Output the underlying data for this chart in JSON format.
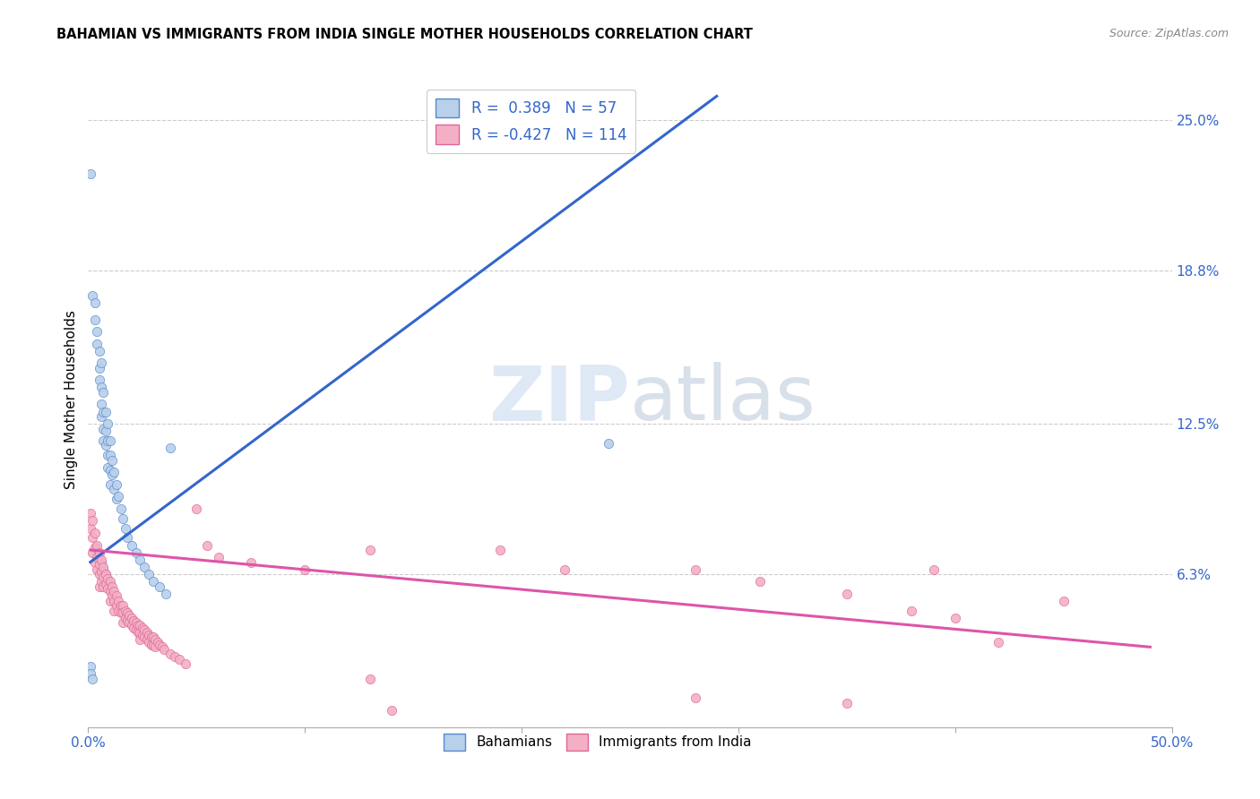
{
  "title": "BAHAMIAN VS IMMIGRANTS FROM INDIA SINGLE MOTHER HOUSEHOLDS CORRELATION CHART",
  "source": "Source: ZipAtlas.com",
  "ylabel": "Single Mother Households",
  "xlim": [
    0.0,
    0.5
  ],
  "ylim": [
    0.0,
    0.27
  ],
  "yticks": [
    0.063,
    0.125,
    0.188,
    0.25
  ],
  "ytick_labels": [
    "6.3%",
    "12.5%",
    "18.8%",
    "25.0%"
  ],
  "xticks": [
    0.0,
    0.1,
    0.2,
    0.3,
    0.4,
    0.5
  ],
  "xtick_labels": [
    "0.0%",
    "",
    "",
    "",
    "",
    "50.0%"
  ],
  "r_blue": 0.389,
  "n_blue": 57,
  "r_pink": -0.427,
  "n_pink": 114,
  "blue_color": "#b8d0ea",
  "pink_color": "#f4afc4",
  "blue_edge_color": "#5588cc",
  "pink_edge_color": "#dd6699",
  "blue_line_color": "#3366cc",
  "pink_line_color": "#dd55aa",
  "watermark_zip": "ZIP",
  "watermark_atlas": "atlas",
  "background_color": "#ffffff",
  "blue_scatter": [
    [
      0.001,
      0.228
    ],
    [
      0.002,
      0.178
    ],
    [
      0.003,
      0.175
    ],
    [
      0.003,
      0.168
    ],
    [
      0.004,
      0.163
    ],
    [
      0.004,
      0.158
    ],
    [
      0.005,
      0.155
    ],
    [
      0.005,
      0.148
    ],
    [
      0.005,
      0.143
    ],
    [
      0.006,
      0.15
    ],
    [
      0.006,
      0.14
    ],
    [
      0.006,
      0.133
    ],
    [
      0.006,
      0.128
    ],
    [
      0.007,
      0.138
    ],
    [
      0.007,
      0.13
    ],
    [
      0.007,
      0.123
    ],
    [
      0.007,
      0.118
    ],
    [
      0.008,
      0.13
    ],
    [
      0.008,
      0.122
    ],
    [
      0.008,
      0.116
    ],
    [
      0.009,
      0.125
    ],
    [
      0.009,
      0.118
    ],
    [
      0.009,
      0.112
    ],
    [
      0.009,
      0.107
    ],
    [
      0.01,
      0.118
    ],
    [
      0.01,
      0.112
    ],
    [
      0.01,
      0.106
    ],
    [
      0.01,
      0.1
    ],
    [
      0.011,
      0.11
    ],
    [
      0.011,
      0.104
    ],
    [
      0.012,
      0.105
    ],
    [
      0.012,
      0.098
    ],
    [
      0.013,
      0.1
    ],
    [
      0.013,
      0.094
    ],
    [
      0.014,
      0.095
    ],
    [
      0.015,
      0.09
    ],
    [
      0.016,
      0.086
    ],
    [
      0.017,
      0.082
    ],
    [
      0.018,
      0.078
    ],
    [
      0.02,
      0.075
    ],
    [
      0.022,
      0.072
    ],
    [
      0.024,
      0.069
    ],
    [
      0.026,
      0.066
    ],
    [
      0.028,
      0.063
    ],
    [
      0.03,
      0.06
    ],
    [
      0.033,
      0.058
    ],
    [
      0.036,
      0.055
    ],
    [
      0.038,
      0.115
    ],
    [
      0.001,
      0.025
    ],
    [
      0.001,
      0.022
    ],
    [
      0.002,
      0.02
    ],
    [
      0.006,
      0.068
    ],
    [
      0.007,
      0.065
    ],
    [
      0.008,
      0.063
    ],
    [
      0.009,
      0.06
    ],
    [
      0.24,
      0.117
    ]
  ],
  "pink_scatter": [
    [
      0.001,
      0.088
    ],
    [
      0.001,
      0.082
    ],
    [
      0.002,
      0.085
    ],
    [
      0.002,
      0.078
    ],
    [
      0.002,
      0.072
    ],
    [
      0.003,
      0.08
    ],
    [
      0.003,
      0.074
    ],
    [
      0.003,
      0.068
    ],
    [
      0.004,
      0.075
    ],
    [
      0.004,
      0.07
    ],
    [
      0.004,
      0.065
    ],
    [
      0.005,
      0.072
    ],
    [
      0.005,
      0.067
    ],
    [
      0.005,
      0.063
    ],
    [
      0.005,
      0.058
    ],
    [
      0.006,
      0.069
    ],
    [
      0.006,
      0.064
    ],
    [
      0.006,
      0.06
    ],
    [
      0.007,
      0.066
    ],
    [
      0.007,
      0.062
    ],
    [
      0.007,
      0.058
    ],
    [
      0.008,
      0.063
    ],
    [
      0.008,
      0.059
    ],
    [
      0.009,
      0.061
    ],
    [
      0.009,
      0.057
    ],
    [
      0.01,
      0.06
    ],
    [
      0.01,
      0.056
    ],
    [
      0.01,
      0.052
    ],
    [
      0.011,
      0.058
    ],
    [
      0.011,
      0.054
    ],
    [
      0.012,
      0.056
    ],
    [
      0.012,
      0.052
    ],
    [
      0.012,
      0.048
    ],
    [
      0.013,
      0.054
    ],
    [
      0.013,
      0.05
    ],
    [
      0.014,
      0.052
    ],
    [
      0.014,
      0.048
    ],
    [
      0.015,
      0.05
    ],
    [
      0.015,
      0.047
    ],
    [
      0.016,
      0.05
    ],
    [
      0.016,
      0.047
    ],
    [
      0.016,
      0.043
    ],
    [
      0.017,
      0.048
    ],
    [
      0.017,
      0.045
    ],
    [
      0.018,
      0.047
    ],
    [
      0.018,
      0.044
    ],
    [
      0.019,
      0.046
    ],
    [
      0.019,
      0.043
    ],
    [
      0.02,
      0.045
    ],
    [
      0.02,
      0.042
    ],
    [
      0.021,
      0.044
    ],
    [
      0.021,
      0.041
    ],
    [
      0.022,
      0.043
    ],
    [
      0.022,
      0.04
    ],
    [
      0.023,
      0.042
    ],
    [
      0.023,
      0.039
    ],
    [
      0.024,
      0.042
    ],
    [
      0.024,
      0.039
    ],
    [
      0.024,
      0.036
    ],
    [
      0.025,
      0.041
    ],
    [
      0.025,
      0.038
    ],
    [
      0.026,
      0.04
    ],
    [
      0.026,
      0.037
    ],
    [
      0.027,
      0.039
    ],
    [
      0.027,
      0.036
    ],
    [
      0.028,
      0.038
    ],
    [
      0.028,
      0.035
    ],
    [
      0.029,
      0.037
    ],
    [
      0.029,
      0.034
    ],
    [
      0.03,
      0.037
    ],
    [
      0.03,
      0.034
    ],
    [
      0.031,
      0.036
    ],
    [
      0.031,
      0.033
    ],
    [
      0.032,
      0.035
    ],
    [
      0.033,
      0.034
    ],
    [
      0.034,
      0.033
    ],
    [
      0.035,
      0.032
    ],
    [
      0.038,
      0.03
    ],
    [
      0.04,
      0.029
    ],
    [
      0.042,
      0.028
    ],
    [
      0.045,
      0.026
    ],
    [
      0.05,
      0.09
    ],
    [
      0.055,
      0.075
    ],
    [
      0.06,
      0.07
    ],
    [
      0.075,
      0.068
    ],
    [
      0.1,
      0.065
    ],
    [
      0.13,
      0.073
    ],
    [
      0.13,
      0.02
    ],
    [
      0.19,
      0.073
    ],
    [
      0.22,
      0.065
    ],
    [
      0.28,
      0.065
    ],
    [
      0.28,
      0.012
    ],
    [
      0.31,
      0.06
    ],
    [
      0.35,
      0.055
    ],
    [
      0.35,
      0.01
    ],
    [
      0.38,
      0.048
    ],
    [
      0.4,
      0.045
    ],
    [
      0.42,
      0.035
    ],
    [
      0.45,
      0.052
    ],
    [
      0.39,
      0.065
    ],
    [
      0.14,
      0.007
    ]
  ],
  "blue_line_x": [
    0.001,
    0.29
  ],
  "blue_line_y_start": 0.068,
  "blue_line_y_end": 0.26,
  "pink_line_x": [
    0.001,
    0.49
  ],
  "pink_line_y_start": 0.073,
  "pink_line_y_end": 0.033
}
